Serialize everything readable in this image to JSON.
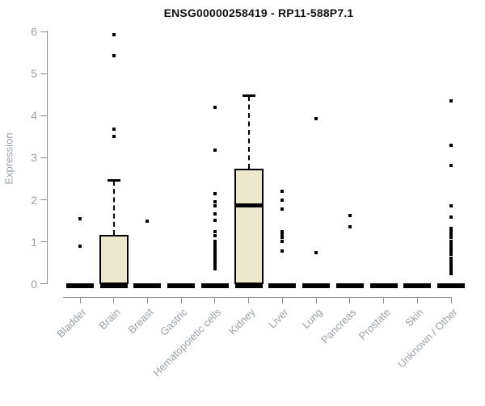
{
  "colors": {
    "box_fill": "#ece8cd",
    "box_border": "#000000",
    "axis": "#8a8f96",
    "tick_label": "#9aa0a6",
    "title_color": "#111111"
  },
  "chart_data": {
    "type": "boxplot",
    "title": "ENSG00000258419 - RP11-588P7.1",
    "xlabel": "",
    "ylabel": "Expression",
    "ylim": [
      0,
      6
    ],
    "yticks": [
      0,
      1,
      2,
      3,
      4,
      5,
      6
    ],
    "grid": false,
    "legend": "none",
    "categories": [
      "Bladder",
      "Brain",
      "Breast",
      "Gastric",
      "Hematopoietic cells",
      "Kidney",
      "Liver",
      "Lung",
      "Pancreas",
      "Prostate",
      "Skin",
      "Unknown / Other"
    ],
    "boxes": [
      {
        "category": "Bladder",
        "q1": 0,
        "median": 0,
        "q3": 0,
        "whisker_low": 0,
        "whisker_high": 0,
        "outliers": [
          1.55,
          0.9
        ]
      },
      {
        "category": "Brain",
        "q1": 0,
        "median": 0.03,
        "q3": 1.17,
        "whisker_low": 0,
        "whisker_high": 2.46,
        "outliers": [
          5.93,
          5.42,
          3.68,
          3.5
        ]
      },
      {
        "category": "Breast",
        "q1": 0,
        "median": 0,
        "q3": 0,
        "whisker_low": 0,
        "whisker_high": 0,
        "outliers": [
          1.5
        ]
      },
      {
        "category": "Gastric",
        "q1": 0,
        "median": 0,
        "q3": 0,
        "whisker_low": 0,
        "whisker_high": 0,
        "outliers": []
      },
      {
        "category": "Hematopoietic cells",
        "q1": 0,
        "median": 0,
        "q3": 0,
        "whisker_low": 0,
        "whisker_high": 0,
        "outliers": [
          4.19,
          3.18,
          2.14,
          1.95,
          1.86,
          1.66,
          1.52,
          1.25,
          1.15,
          1.02,
          0.96,
          0.9,
          0.84,
          0.78,
          0.72,
          0.66,
          0.6,
          0.54,
          0.47,
          0.41,
          0.36
        ]
      },
      {
        "category": "Kidney",
        "q1": 0,
        "median": 1.88,
        "q3": 2.73,
        "whisker_low": 0,
        "whisker_high": 4.47,
        "outliers": []
      },
      {
        "category": "Liver",
        "q1": 0,
        "median": 0,
        "q3": 0,
        "whisker_low": 0,
        "whisker_high": 0,
        "outliers": [
          2.2,
          2.0,
          1.78,
          1.25,
          1.18,
          1.1,
          1.02,
          0.78
        ]
      },
      {
        "category": "Lung",
        "q1": 0,
        "median": 0,
        "q3": 0,
        "whisker_low": 0,
        "whisker_high": 0,
        "outliers": [
          3.92,
          0.75
        ]
      },
      {
        "category": "Pancreas",
        "q1": 0,
        "median": 0,
        "q3": 0,
        "whisker_low": 0,
        "whisker_high": 0,
        "outliers": [
          1.63,
          1.35
        ]
      },
      {
        "category": "Prostate",
        "q1": 0,
        "median": 0,
        "q3": 0,
        "whisker_low": 0,
        "whisker_high": 0,
        "outliers": []
      },
      {
        "category": "Skin",
        "q1": 0,
        "median": 0,
        "q3": 0,
        "whisker_low": 0,
        "whisker_high": 0,
        "outliers": []
      },
      {
        "category": "Unknown / Other",
        "q1": 0,
        "median": 0,
        "q3": 0,
        "whisker_low": 0,
        "whisker_high": 0,
        "outliers": [
          4.36,
          3.3,
          2.82,
          1.85,
          1.58,
          1.31,
          1.25,
          1.18,
          1.1,
          1.02,
          0.96,
          0.9,
          0.83,
          0.77,
          0.7,
          0.61,
          0.55,
          0.48,
          0.42,
          0.35,
          0.29,
          0.24
        ]
      }
    ]
  }
}
